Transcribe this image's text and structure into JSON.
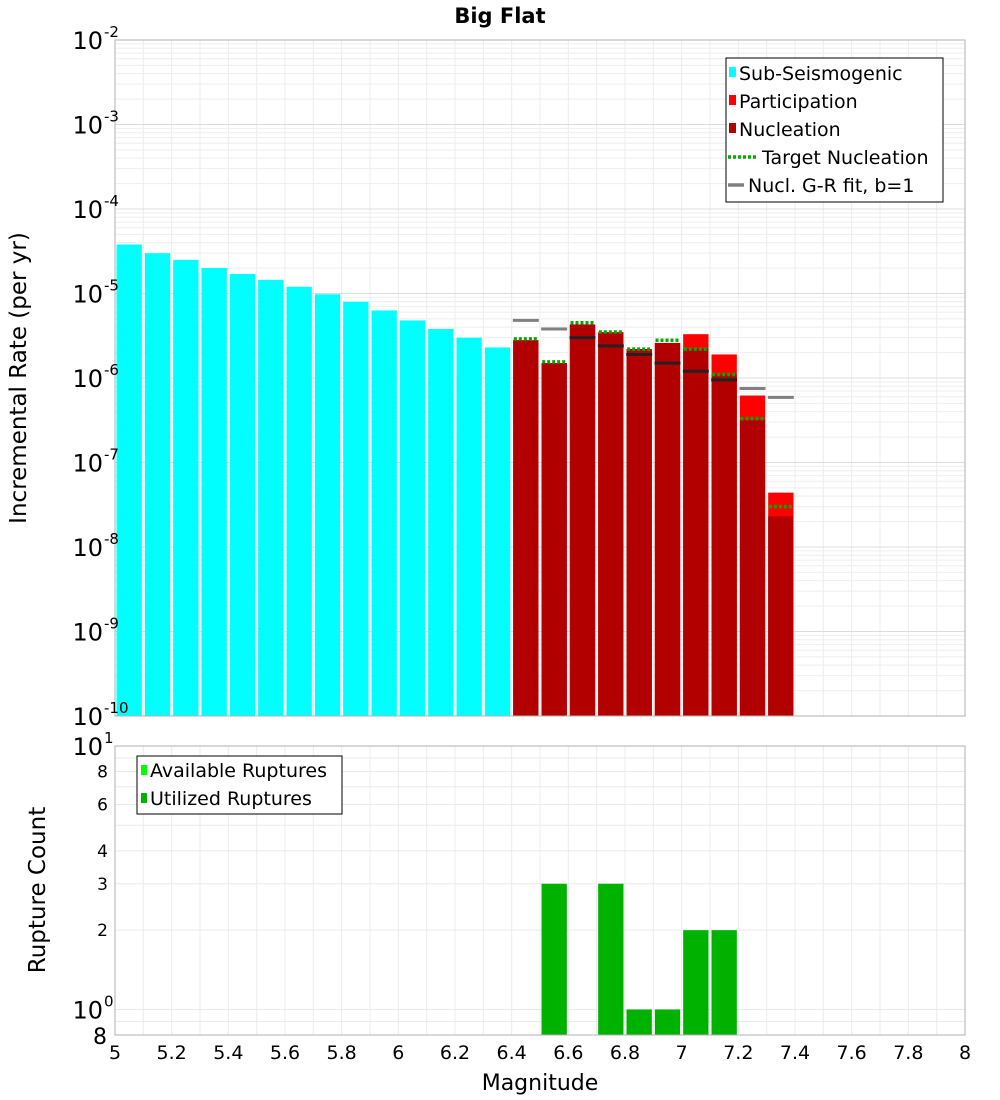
{
  "chart_data": [
    {
      "type": "bar",
      "title": "Big Flat",
      "xlabel": "",
      "ylabel": "Incremental Rate (per yr)",
      "yscale": "log",
      "xlim": [
        5,
        8
      ],
      "ylim": [
        1e-10,
        0.01
      ],
      "y_tick_bases": [
        "10",
        "10",
        "10",
        "10",
        "10",
        "10",
        "10",
        "10",
        "10"
      ],
      "y_tick_exponents": [
        "-10",
        "-9",
        "-8",
        "-7",
        "-6",
        "-5",
        "-4",
        "-3",
        "-2"
      ],
      "legend_position": "top-right",
      "legend": [
        {
          "label": "Sub-Seismogenic",
          "color": "#00ffff",
          "kind": "bar"
        },
        {
          "label": "Participation",
          "color": "#ff0000",
          "kind": "bar"
        },
        {
          "label": "Nucleation",
          "color": "#b20000",
          "kind": "bar"
        },
        {
          "label": "Target Nucleation",
          "color": "#00aa00",
          "kind": "dotted"
        },
        {
          "label": "Nucl. G-R fit, b=1",
          "color": "#808080",
          "kind": "line"
        }
      ],
      "sub_seismogenic": {
        "x": [
          5.05,
          5.15,
          5.25,
          5.35,
          5.45,
          5.55,
          5.65,
          5.75,
          5.85,
          5.95,
          6.05,
          6.15,
          6.25,
          6.35
        ],
        "values": [
          3.8e-05,
          3e-05,
          2.5e-05,
          2e-05,
          1.7e-05,
          1.45e-05,
          1.2e-05,
          9.8e-06,
          8e-06,
          6.3e-06,
          4.8e-06,
          3.8e-06,
          3e-06,
          2.3e-06
        ]
      },
      "x": [
        6.45,
        6.55,
        6.65,
        6.75,
        6.85,
        6.95,
        7.05,
        7.15,
        7.25,
        7.35
      ],
      "series": [
        {
          "name": "Participation",
          "values": [
            2.8e-06,
            1.5e-06,
            4.3e-06,
            3.5e-06,
            2.2e-06,
            2.6e-06,
            3.3e-06,
            1.9e-06,
            6.2e-07,
            4.4e-08
          ]
        },
        {
          "name": "Nucleation",
          "values": [
            2.8e-06,
            1.5e-06,
            4.3e-06,
            3.4e-06,
            2.2e-06,
            2.6e-06,
            2.2e-06,
            1.1e-06,
            3.2e-07,
            2.3e-08
          ]
        },
        {
          "name": "Target Nucleation",
          "values": [
            2.9e-06,
            1.55e-06,
            4.5e-06,
            3.5e-06,
            2.2e-06,
            2.8e-06,
            2.2e-06,
            1.1e-06,
            3.3e-07,
            3e-08
          ]
        },
        {
          "name": "Nucl. G-R fit, b=1",
          "values": [
            4.8e-06,
            3.8e-06,
            3e-06,
            2.4e-06,
            1.9e-06,
            1.5e-06,
            1.2e-06,
            9.5e-07,
            7.5e-07,
            5.9e-07
          ]
        }
      ]
    },
    {
      "type": "bar",
      "title": "",
      "xlabel": "Magnitude",
      "ylabel": "Rupture Count",
      "yscale": "log",
      "xlim": [
        5,
        8
      ],
      "ylim": [
        0.8,
        10
      ],
      "x_ticks": [
        "5",
        "5.2",
        "5.4",
        "5.6",
        "5.8",
        "6",
        "6.2",
        "6.4",
        "6.6",
        "6.8",
        "7",
        "7.2",
        "7.4",
        "7.6",
        "7.8",
        "8"
      ],
      "y_minor_ticks": [
        {
          "value": 2,
          "label": "2"
        },
        {
          "value": 3,
          "label": "3"
        },
        {
          "value": 4,
          "label": "4"
        },
        {
          "value": 6,
          "label": "6"
        },
        {
          "value": 8,
          "label": "8"
        }
      ],
      "y_major_ticks": [
        {
          "value": 1,
          "base": "10",
          "exp": "0"
        },
        {
          "value": 10,
          "base": "10",
          "exp": "1"
        }
      ],
      "y_bottom_label": "8",
      "legend_position": "top-left",
      "legend": [
        {
          "label": "Available Ruptures",
          "color": "#00ff00"
        },
        {
          "label": "Utilized Ruptures",
          "color": "#00b200"
        }
      ],
      "x": [
        6.55,
        6.75,
        6.85,
        6.95,
        7.05,
        7.15
      ],
      "series": [
        {
          "name": "Available Ruptures",
          "values": [
            3,
            3,
            1,
            1,
            2,
            2
          ]
        },
        {
          "name": "Utilized Ruptures",
          "values": [
            3,
            3,
            1,
            1,
            2,
            2
          ]
        }
      ]
    }
  ]
}
